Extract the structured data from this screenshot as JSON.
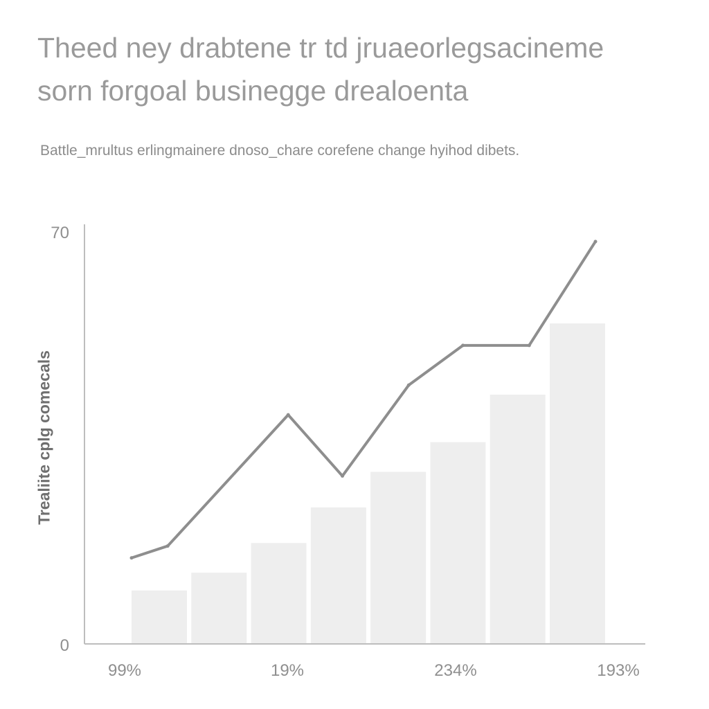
{
  "chart_data": {
    "type": "bar",
    "title": "Theed ney drabtene tr td jruaeorlegsacineme sorn forgoal businegge drealoenta",
    "subtitle": "Battle_mrultus erlingmainere dnoso_chare corefene change hyihod dibets.",
    "ylabel": "Trealiite cplg comecals",
    "xlabel": "",
    "ylim": [
      0,
      70
    ],
    "y_tick_labels": [
      "0",
      "70"
    ],
    "x_tick_labels": [
      "99%",
      "19%",
      "234%",
      "193%"
    ],
    "bar_values": [
      9,
      12,
      17,
      23,
      29,
      34,
      42,
      54
    ],
    "line_points": [
      {
        "x": 0.0,
        "y": 14.5
      },
      {
        "x": 0.6,
        "y": 16.5
      },
      {
        "x": 2.6,
        "y": 38.6
      },
      {
        "x": 3.5,
        "y": 28.3
      },
      {
        "x": 4.6,
        "y": 43.6
      },
      {
        "x": 5.5,
        "y": 50.3
      },
      {
        "x": 6.6,
        "y": 50.3
      },
      {
        "x": 7.7,
        "y": 67.8
      }
    ],
    "grid": false,
    "colors": {
      "bars": "#eeeeee",
      "line": "#8e8e8e",
      "axis": "#bdbdbd"
    }
  }
}
